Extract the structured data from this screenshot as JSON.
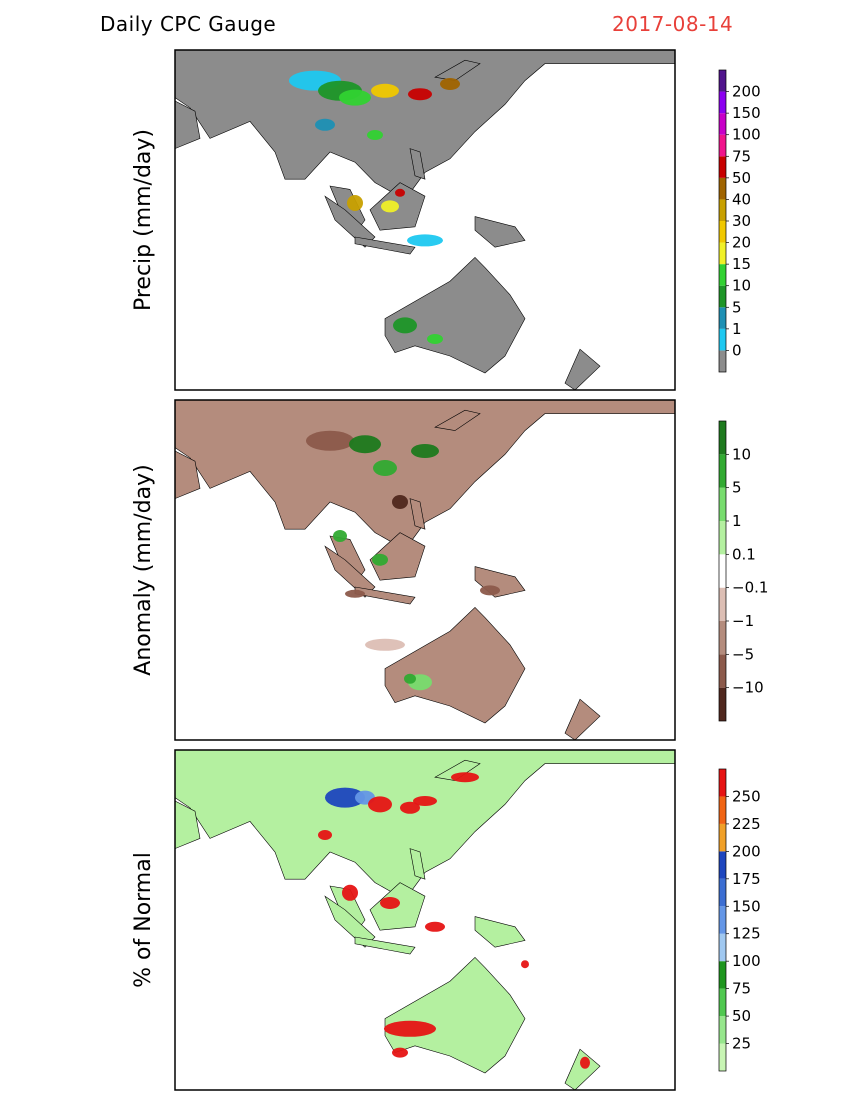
{
  "header": {
    "title": "Daily CPC Gauge",
    "date": "2017-08-14"
  },
  "colors": {
    "date_text": "#e8403a",
    "land_gray": "#8c8c8c",
    "frame": "#000000"
  },
  "chart_data": [
    {
      "type": "heatmap",
      "ylabel": "Precip (mm/day)",
      "colorbar": {
        "labels": [
          "0",
          "1",
          "5",
          "10",
          "15",
          "20",
          "30",
          "40",
          "50",
          "75",
          "100",
          "150",
          "200"
        ],
        "colors": [
          "#8c8c8c",
          "#1ec8f0",
          "#1e90b4",
          "#1e9628",
          "#32d232",
          "#f0f028",
          "#f0c800",
          "#c8a000",
          "#a06400",
          "#c80000",
          "#f0148c",
          "#c800c8",
          "#8c00f0",
          "#50148c"
        ]
      }
    },
    {
      "type": "heatmap",
      "ylabel": "Anomaly (mm/day)",
      "colorbar": {
        "labels": [
          "−10",
          "−5",
          "−1",
          "−0.1",
          "0.1",
          "1",
          "5",
          "10"
        ],
        "colors": [
          "#50281e",
          "#8c5a4b",
          "#b48c7d",
          "#dcbeb4",
          "#ffffff",
          "#b4f0a0",
          "#78dc6e",
          "#32aa32",
          "#1e7a1e"
        ]
      }
    },
    {
      "type": "heatmap",
      "ylabel": "% of Normal",
      "colorbar": {
        "labels": [
          "25",
          "50",
          "75",
          "100",
          "125",
          "150",
          "175",
          "200",
          "225",
          "250"
        ],
        "colors": [
          "#c8f5b4",
          "#96e68c",
          "#50c850",
          "#1e961e",
          "#a0c8f0",
          "#6496e6",
          "#3c6ed2",
          "#1e46be",
          "#f0a028",
          "#f06414",
          "#e61414"
        ]
      }
    }
  ]
}
